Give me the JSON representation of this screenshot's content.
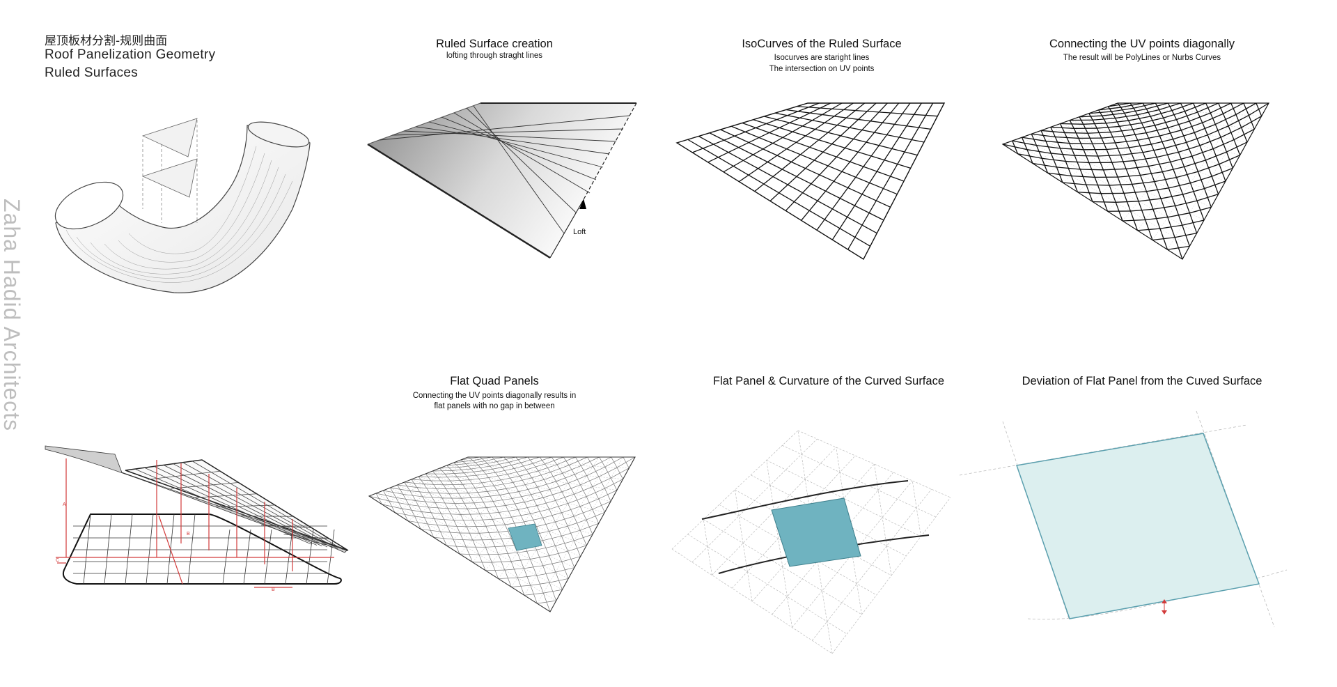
{
  "header": {
    "title_cn": "屋顶板材分割-规则曲面",
    "title_en_1": "Roof Panelization Geometry",
    "title_en_2": "Ruled Surfaces"
  },
  "side_label": "Zaha Hadid Architects",
  "panels": [
    {
      "title": "Ruled Surface creation",
      "sub1": "lofting through straght lines",
      "sub2": ""
    },
    {
      "title": "IsoCurves of the Ruled Surface",
      "sub1": "Isocurves are staright lines",
      "sub2": "The intersection on UV points"
    },
    {
      "title": "Connecting the UV points diagonally",
      "sub1": "The result will be PolyLines or Nurbs Curves",
      "sub2": ""
    },
    {
      "title": "Flat Quad Panels",
      "sub1": "Connecting the UV points diagonally results in",
      "sub2": "flat panels with no gap in between"
    },
    {
      "title": "Flat Panel & Curvature of the Curved Surface",
      "sub1": "",
      "sub2": ""
    },
    {
      "title": "Deviation of Flat Panel from the Cuved Surface",
      "sub1": "",
      "sub2": ""
    }
  ],
  "labels": {
    "loft": "Loft",
    "dim_a": "A",
    "dim_b": "B",
    "dim_c": "C"
  },
  "colors": {
    "panel_teal": "#6fb3c0",
    "panel_light": "#dcefef",
    "dimension_red": "#d23a3a"
  }
}
